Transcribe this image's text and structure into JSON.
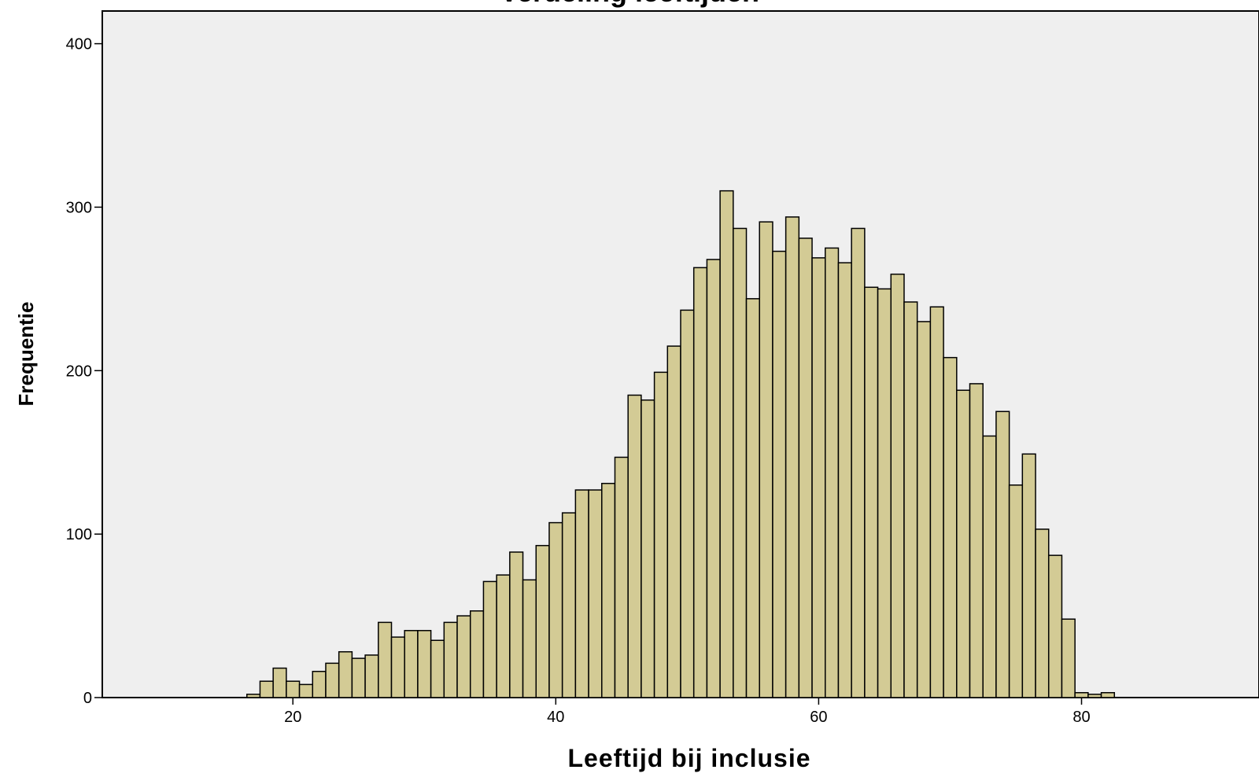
{
  "chart_data": {
    "type": "bar",
    "title": "Verdeling leeftijden",
    "xlabel": "Leeftijd bij inclusie",
    "ylabel": "Frequentie",
    "xlim": [
      5.5,
      93.5
    ],
    "ylim": [
      0,
      420
    ],
    "x_ticks": [
      20,
      40,
      60,
      80
    ],
    "y_ticks": [
      0,
      100,
      200,
      300,
      400
    ],
    "grid": false,
    "legend": "none",
    "bar_fill": "#D3CB95",
    "bar_stroke": "#000000",
    "plot_background": "#EFEFEF",
    "bin_width": 1,
    "x": [
      17,
      18,
      19,
      20,
      21,
      22,
      23,
      24,
      25,
      26,
      27,
      28,
      29,
      30,
      31,
      32,
      33,
      34,
      35,
      36,
      37,
      38,
      39,
      40,
      41,
      42,
      43,
      44,
      45,
      46,
      47,
      48,
      49,
      50,
      51,
      52,
      53,
      54,
      55,
      56,
      57,
      58,
      59,
      60,
      61,
      62,
      63,
      64,
      65,
      66,
      67,
      68,
      69,
      70,
      71,
      72,
      73,
      74,
      75,
      76,
      77,
      78,
      79,
      80,
      81,
      82
    ],
    "values": [
      2,
      10,
      18,
      10,
      8,
      16,
      21,
      28,
      24,
      26,
      46,
      37,
      41,
      41,
      35,
      46,
      50,
      53,
      71,
      75,
      89,
      72,
      93,
      107,
      113,
      127,
      127,
      131,
      147,
      185,
      182,
      199,
      215,
      237,
      263,
      268,
      310,
      287,
      244,
      291,
      273,
      294,
      281,
      269,
      275,
      266,
      287,
      251,
      250,
      259,
      242,
      230,
      239,
      208,
      188,
      192,
      160,
      175,
      130,
      149,
      103,
      87,
      48,
      3,
      2,
      3
    ]
  }
}
